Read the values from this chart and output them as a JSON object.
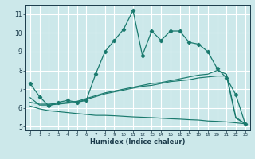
{
  "bg_color": "#cce8ea",
  "grid_color": "#ffffff",
  "line_color": "#1a7a6e",
  "xlabel": "Humidex (Indice chaleur)",
  "ylim": [
    4.8,
    11.5
  ],
  "xlim": [
    -0.5,
    23.5
  ],
  "yticks": [
    5,
    6,
    7,
    8,
    9,
    10,
    11
  ],
  "xticks": [
    0,
    1,
    2,
    3,
    4,
    5,
    6,
    7,
    8,
    9,
    10,
    11,
    12,
    13,
    14,
    15,
    16,
    17,
    18,
    19,
    20,
    21,
    22,
    23
  ],
  "line1_x": [
    0,
    1,
    2,
    3,
    4,
    5,
    6,
    7,
    8,
    9,
    10,
    11,
    12,
    13,
    14,
    15,
    16,
    17,
    18,
    19,
    20,
    21,
    22,
    23
  ],
  "line1_y": [
    7.3,
    6.6,
    6.1,
    6.3,
    6.4,
    6.3,
    6.4,
    7.8,
    9.0,
    9.6,
    10.2,
    11.2,
    8.8,
    10.1,
    9.6,
    10.1,
    10.1,
    9.5,
    9.4,
    9.0,
    8.1,
    7.6,
    6.7,
    5.15
  ],
  "line2_x": [
    0,
    1,
    2,
    3,
    4,
    5,
    6,
    7,
    8,
    9,
    10,
    11,
    12,
    13,
    14,
    15,
    16,
    17,
    18,
    19,
    20,
    21,
    22,
    23
  ],
  "line2_y": [
    6.3,
    6.2,
    6.2,
    6.25,
    6.3,
    6.35,
    6.5,
    6.65,
    6.8,
    6.9,
    7.0,
    7.1,
    7.2,
    7.3,
    7.35,
    7.45,
    7.55,
    7.65,
    7.75,
    7.8,
    8.0,
    7.8,
    5.5,
    5.15
  ],
  "line3_x": [
    0,
    1,
    2,
    3,
    4,
    5,
    6,
    7,
    8,
    9,
    10,
    11,
    12,
    13,
    14,
    15,
    16,
    17,
    18,
    19,
    20,
    21,
    22,
    23
  ],
  "line3_y": [
    6.55,
    6.15,
    6.15,
    6.2,
    6.25,
    6.3,
    6.45,
    6.6,
    6.75,
    6.85,
    6.95,
    7.05,
    7.15,
    7.2,
    7.3,
    7.4,
    7.45,
    7.5,
    7.6,
    7.65,
    7.7,
    7.7,
    5.45,
    5.15
  ],
  "line4_x": [
    0,
    1,
    2,
    3,
    4,
    5,
    6,
    7,
    8,
    9,
    10,
    11,
    12,
    13,
    14,
    15,
    16,
    17,
    18,
    19,
    20,
    21,
    22,
    23
  ],
  "line4_y": [
    6.1,
    5.95,
    5.85,
    5.8,
    5.75,
    5.7,
    5.65,
    5.6,
    5.6,
    5.58,
    5.55,
    5.52,
    5.5,
    5.48,
    5.45,
    5.42,
    5.4,
    5.37,
    5.35,
    5.3,
    5.28,
    5.25,
    5.2,
    5.15
  ]
}
